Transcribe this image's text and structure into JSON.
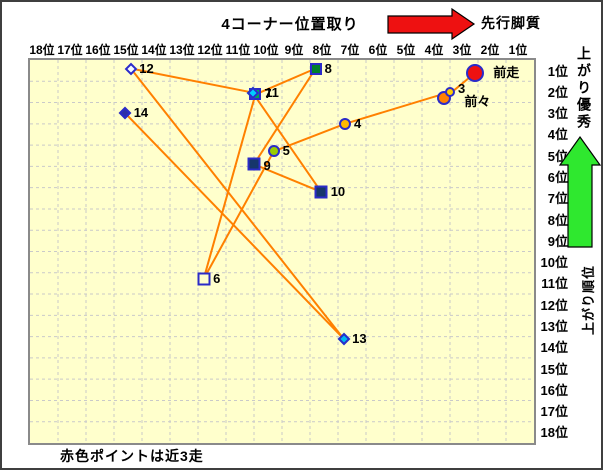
{
  "window": {
    "frame_color": "#3f3f3f",
    "bg": "#ffffff"
  },
  "header": {
    "title": "4コーナー位置取り",
    "arrow_label": "先行脚質",
    "arrow_color": "#ee1111"
  },
  "right_panel": {
    "top_caption": "上がり優秀",
    "axis_title": "上がり順位",
    "arrow_color": "#2fe82f"
  },
  "footer": {
    "note": "赤色ポイントは近3走"
  },
  "chart_data": {
    "type": "scatter",
    "title": "4コーナー位置取り",
    "x_axis": {
      "ticks": [
        "18位",
        "17位",
        "16位",
        "15位",
        "14位",
        "13位",
        "12位",
        "11位",
        "10位",
        "9位",
        "8位",
        "7位",
        "6位",
        "5位",
        "4位",
        "3位",
        "2位",
        "1位"
      ],
      "direction": "18位 left → 1位 right",
      "meaning": "4コーナー位置(先行ほど右)"
    },
    "y_axis": {
      "ticks": [
        "1位",
        "2位",
        "3位",
        "4位",
        "5位",
        "6位",
        "7位",
        "8位",
        "9位",
        "10位",
        "11位",
        "12位",
        "13位",
        "14位",
        "15位",
        "16位",
        "17位",
        "18位"
      ],
      "direction": "1位 top → 18位 bottom",
      "title": "上がり順位"
    },
    "plot_bg": "#ffffcc",
    "grid_color": "#c9c9c9",
    "line_color": "#ff8000",
    "marker_border": "#2b2bc8",
    "legend_note": "赤色ポイントは近3走",
    "points": [
      {
        "seq": 1,
        "label": "前走",
        "x_rank": 2.6,
        "y_rank": 1.1,
        "marker": "circle",
        "fill": "#ee1111",
        "size": 18,
        "label_dx": 6
      },
      {
        "seq": 2,
        "label": "前々",
        "x_rank": 3.7,
        "y_rank": 2.3,
        "marker": "circle",
        "fill": "#ff8000",
        "size": 14,
        "label_dx": 10,
        "label_dy": 4
      },
      {
        "seq": 3,
        "label": "3",
        "x_rank": 3.5,
        "y_rank": 2.0,
        "marker": "circle",
        "fill": "#ffcc00",
        "size": 10,
        "label_dy": -3
      },
      {
        "seq": 4,
        "label": "4",
        "x_rank": 7.25,
        "y_rank": 3.5,
        "marker": "circle",
        "fill": "#ffb900",
        "size": 12
      },
      {
        "seq": 5,
        "label": "5",
        "x_rank": 9.8,
        "y_rank": 4.8,
        "marker": "circle",
        "fill": "#99cc00",
        "size": 12
      },
      {
        "seq": 6,
        "label": "6",
        "x_rank": 12.3,
        "y_rank": 10.8,
        "marker": "square",
        "fill": "#ffffcc",
        "size": 13
      },
      {
        "seq": 7,
        "label": "7",
        "x_rank": 10.45,
        "y_rank": 2.12,
        "marker": "square",
        "fill": "#00a651",
        "size": 12
      },
      {
        "seq": 8,
        "label": "8",
        "x_rank": 8.3,
        "y_rank": 0.9,
        "marker": "square",
        "fill": "#00802b",
        "size": 12
      },
      {
        "seq": 9,
        "label": "9",
        "x_rank": 10.5,
        "y_rank": 5.4,
        "marker": "square",
        "fill": "#16366c",
        "size": 13,
        "label_dy": 2
      },
      {
        "seq": 10,
        "label": "10",
        "x_rank": 8.1,
        "y_rank": 6.7,
        "marker": "square",
        "fill": "#16366c",
        "size": 13
      },
      {
        "seq": 11,
        "label": "11",
        "x_rank": 10.55,
        "y_rank": 2.03,
        "marker": "diamond",
        "fill": "#00ccff",
        "size": 11,
        "label_dx": 4
      },
      {
        "seq": 12,
        "label": "12",
        "x_rank": 14.9,
        "y_rank": 0.9,
        "marker": "diamond",
        "fill": "#f4f9ff",
        "size": 11
      },
      {
        "seq": 13,
        "label": "13",
        "x_rank": 7.3,
        "y_rank": 13.6,
        "marker": "diamond",
        "fill": "#00b8f0",
        "size": 11
      },
      {
        "seq": 14,
        "label": "14",
        "x_rank": 15.1,
        "y_rank": 3.0,
        "marker": "diamond",
        "fill": "#2e2ea8",
        "size": 11
      }
    ],
    "connect_points_in_sequence": true
  }
}
